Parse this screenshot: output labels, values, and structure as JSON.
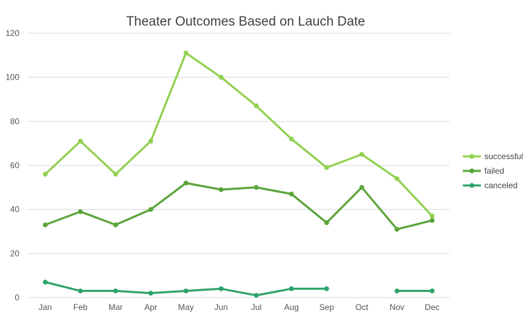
{
  "chart_data": {
    "type": "line",
    "title": "Theater Outcomes Based on Lauch Date",
    "xlabel": "",
    "ylabel": "",
    "categories": [
      "Jan",
      "Feb",
      "Mar",
      "Apr",
      "May",
      "Jun",
      "Jul",
      "Aug",
      "Sep",
      "Oct",
      "Nov",
      "Dec"
    ],
    "ylim": [
      0,
      120
    ],
    "yticks": [
      0,
      20,
      40,
      60,
      80,
      100,
      120
    ],
    "grid": true,
    "legend_position": "right",
    "series": [
      {
        "name": "successful",
        "color": "#92d050",
        "values": [
          56,
          71,
          56,
          71,
          111,
          100,
          87,
          72,
          59,
          65,
          54,
          37
        ]
      },
      {
        "name": "failed",
        "color": "#5aa43a",
        "values": [
          33,
          39,
          33,
          40,
          52,
          49,
          50,
          47,
          34,
          50,
          31,
          35
        ]
      },
      {
        "name": "canceled",
        "color": "#2ea36a",
        "values": [
          7,
          3,
          3,
          2,
          3,
          4,
          1,
          4,
          4,
          null,
          3,
          3
        ]
      }
    ]
  }
}
